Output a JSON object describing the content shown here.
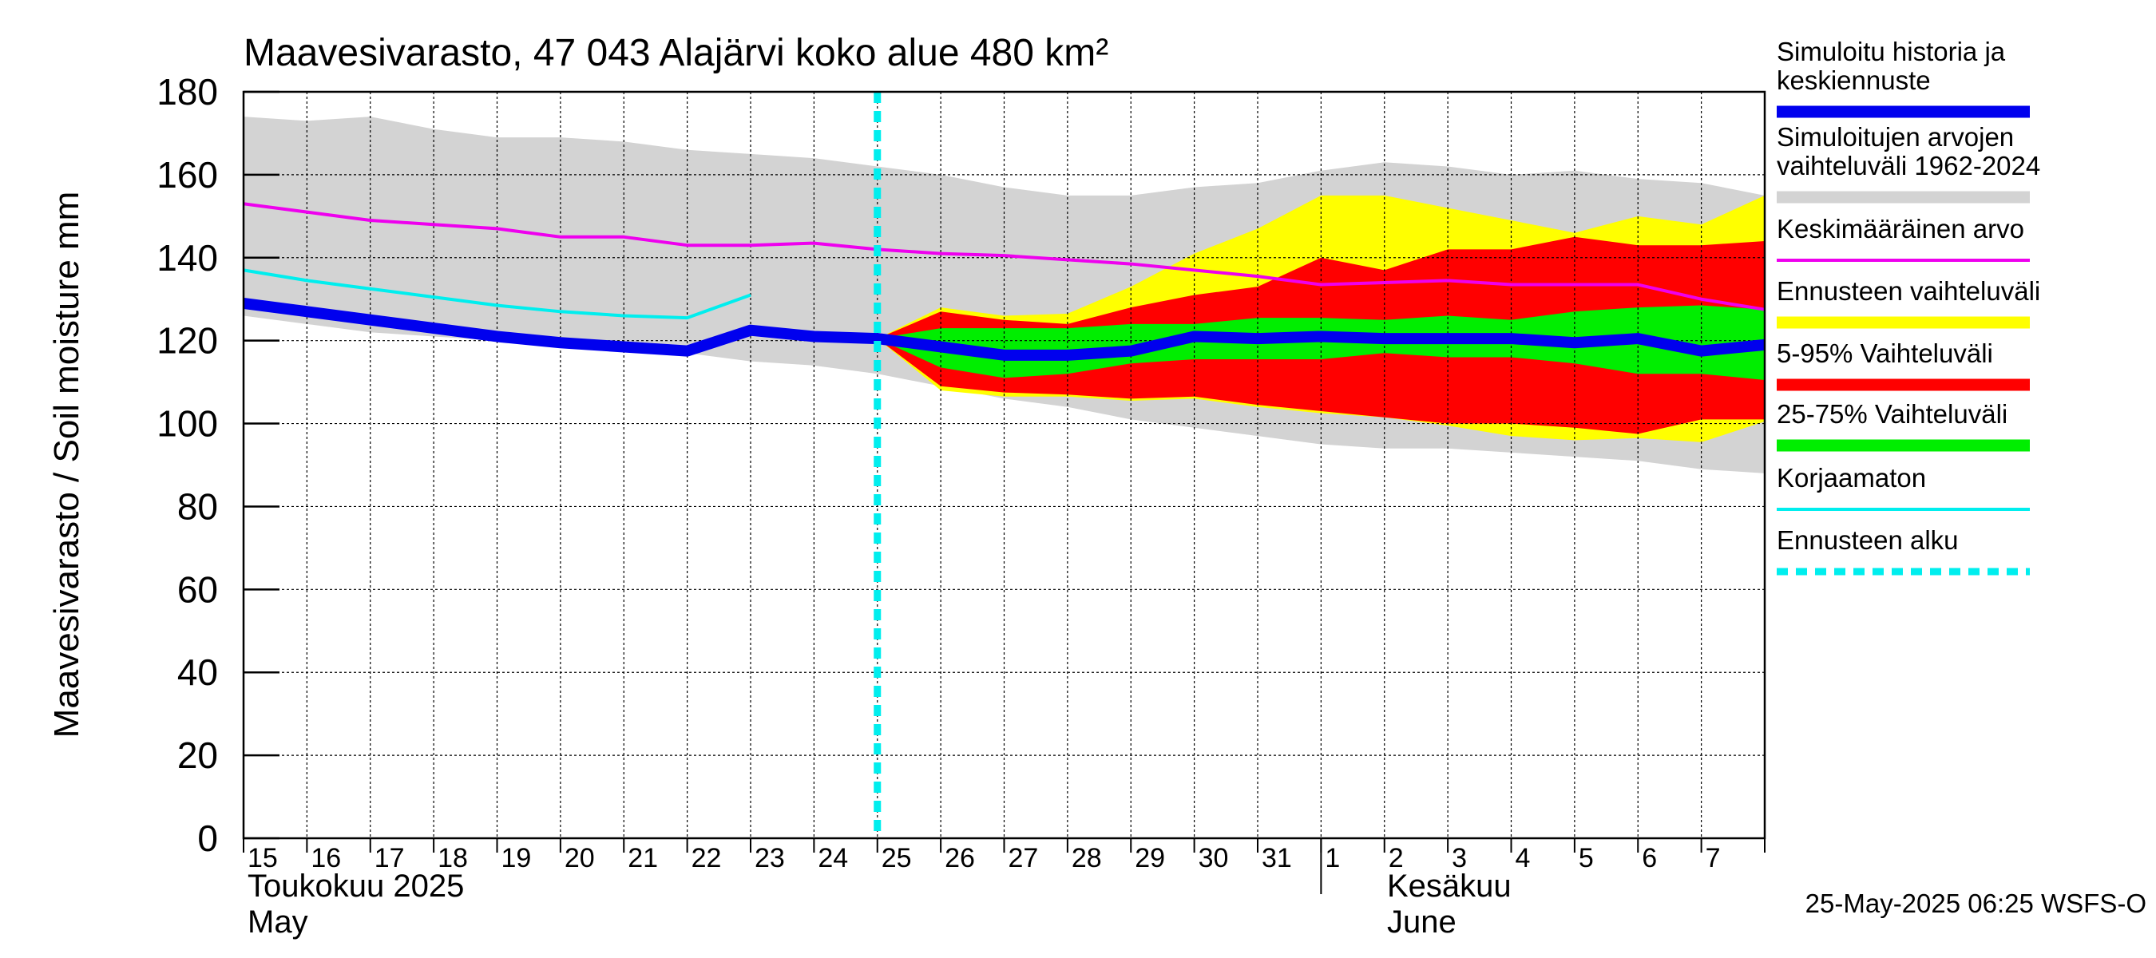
{
  "chart_data": {
    "type": "area",
    "title": "Maavesivarasto, 47 043 Alajärvi koko alue 480 km²",
    "ylabel": "Maavesivarasto / Soil moisture   mm",
    "ylim": [
      0,
      180
    ],
    "yticks": [
      0,
      20,
      40,
      60,
      80,
      100,
      120,
      140,
      160,
      180
    ],
    "x_days": [
      "15",
      "16",
      "17",
      "18",
      "19",
      "20",
      "21",
      "22",
      "23",
      "24",
      "25",
      "26",
      "27",
      "28",
      "29",
      "30",
      "31",
      "1",
      "2",
      "3",
      "4",
      "5",
      "6",
      "7"
    ],
    "month_labels": {
      "may_fi": "Toukokuu  2025",
      "may_en": "May",
      "june_fi": "Kesäkuu",
      "june_en": "June"
    },
    "forecast_start_index": 10,
    "footer": "25-May-2025 06:25 WSFS-O",
    "colors": {
      "history": "#0000ee",
      "sim_range": "#d3d3d3",
      "mean": "#ee00ee",
      "forecast_range": "#ffff00",
      "p5_95": "#ff0000",
      "p25_75": "#00ee00",
      "uncorrected": "#00eeee",
      "forecast_start": "#00eeee"
    },
    "legend": [
      {
        "label": "Simuloitu historia ja keskiennuste",
        "key": "history"
      },
      {
        "label": "Simuloitujen arvojen vaihteluväli 1962-2024",
        "key": "sim_range"
      },
      {
        "label": "Keskimääräinen arvo",
        "key": "mean"
      },
      {
        "label": "Ennusteen vaihteluväli",
        "key": "forecast_range"
      },
      {
        "label": "5-95% Vaihteluväli",
        "key": "p5_95"
      },
      {
        "label": "25-75% Vaihteluväli",
        "key": "p25_75"
      },
      {
        "label": "Korjaamaton",
        "key": "uncorrected"
      },
      {
        "label": "Ennusteen alku",
        "key": "forecast_start"
      }
    ],
    "series": {
      "sim_range": {
        "x": [
          0,
          1,
          2,
          3,
          4,
          5,
          6,
          7,
          8,
          9,
          10,
          11,
          12,
          13,
          14,
          15,
          16,
          17,
          18,
          19,
          20,
          21,
          22,
          23,
          24
        ],
        "upper": [
          174,
          173,
          174,
          171,
          169,
          169,
          168,
          166,
          165,
          164,
          162,
          160,
          157,
          155,
          155,
          157,
          158,
          161,
          163,
          162,
          160,
          161,
          159,
          158,
          155
        ],
        "lower": [
          126,
          124,
          122,
          121,
          120,
          119,
          118,
          117,
          115,
          114,
          112,
          109,
          106,
          104,
          101,
          99,
          97,
          95,
          94,
          94,
          93,
          92,
          91,
          89,
          88
        ]
      },
      "mean": {
        "x": [
          0,
          1,
          2,
          3,
          4,
          5,
          6,
          7,
          8,
          9,
          10,
          11,
          12,
          13,
          14,
          15,
          16,
          17,
          18,
          19,
          20,
          21,
          22,
          23,
          24
        ],
        "values": [
          153,
          151,
          149,
          148,
          147,
          145,
          145,
          143,
          143,
          143.5,
          142,
          141,
          140.5,
          139.5,
          138.5,
          137,
          135.5,
          133.5,
          134,
          134.5,
          133.5,
          133.5,
          133.5,
          130,
          127.5
        ]
      },
      "uncorrected": {
        "x": [
          0,
          1,
          2,
          3,
          4,
          5,
          6,
          7,
          8
        ],
        "values": [
          137,
          134.5,
          132.5,
          130.5,
          128.5,
          127,
          126,
          125.5,
          131
        ]
      },
      "history": {
        "x": [
          0,
          1,
          2,
          3,
          4,
          5,
          6,
          7,
          8,
          9,
          10,
          11,
          12,
          13,
          14,
          15,
          16,
          17,
          18,
          19,
          20,
          21,
          22,
          23,
          24
        ],
        "values": [
          129,
          127,
          125,
          123,
          121,
          119.5,
          118.5,
          117.5,
          122.5,
          121,
          120.5,
          118.5,
          116.5,
          116.5,
          117.5,
          121,
          120.5,
          121,
          120.5,
          120.5,
          120.5,
          119.5,
          120.5,
          117.5,
          119
        ]
      },
      "forecast_range": {
        "x": [
          10,
          11,
          12,
          13,
          14,
          15,
          16,
          17,
          18,
          19,
          20,
          21,
          22,
          23,
          24
        ],
        "upper": [
          120.5,
          128,
          126,
          126.5,
          133,
          141,
          147,
          155,
          155,
          152,
          149,
          146,
          150,
          148,
          155
        ],
        "lower": [
          120.5,
          108,
          106.5,
          106.5,
          105.5,
          106,
          104,
          102.5,
          101.5,
          99.5,
          97,
          96,
          96.5,
          95.5,
          100.5
        ]
      },
      "p5_95": {
        "x": [
          10,
          11,
          12,
          13,
          14,
          15,
          16,
          17,
          18,
          19,
          20,
          21,
          22,
          23,
          24
        ],
        "upper": [
          120.5,
          127,
          125,
          124,
          128,
          131,
          133,
          140,
          137,
          142,
          142,
          145,
          143,
          143,
          144
        ],
        "lower": [
          120.5,
          109,
          107.5,
          107,
          106,
          106.5,
          104.5,
          103,
          101.5,
          100,
          100,
          99,
          97.5,
          101,
          101
        ]
      },
      "p25_75": {
        "x": [
          10,
          11,
          12,
          13,
          14,
          15,
          16,
          17,
          18,
          19,
          20,
          21,
          22,
          23,
          24
        ],
        "upper": [
          120.5,
          123,
          123,
          123,
          124,
          124,
          125.5,
          125.5,
          125,
          126,
          125,
          127,
          128,
          128.5,
          127.5
        ],
        "lower": [
          120.5,
          113.5,
          111,
          112,
          114.5,
          115.5,
          115.5,
          115.5,
          117,
          116,
          116,
          114.5,
          112,
          112,
          110.5
        ]
      }
    }
  }
}
